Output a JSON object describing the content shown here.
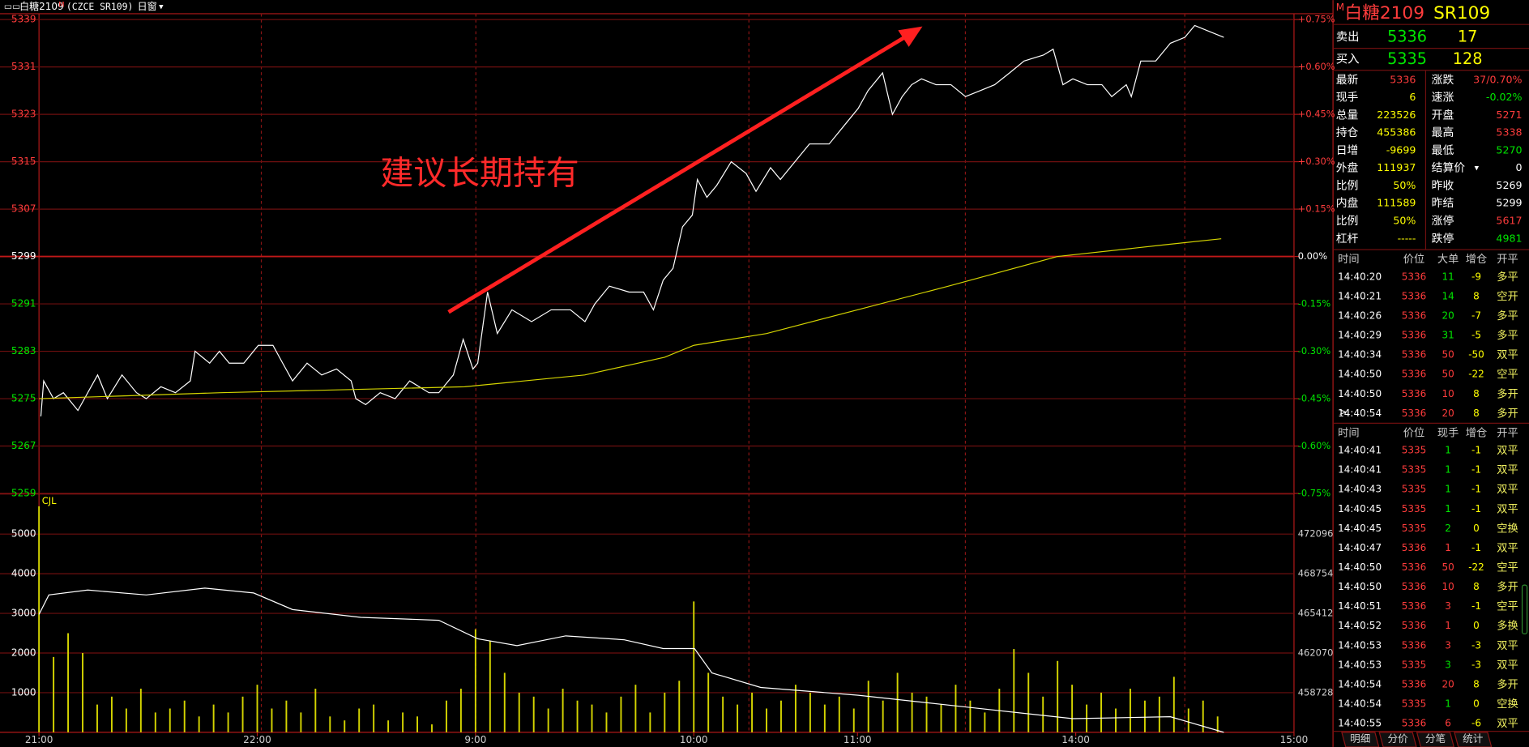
{
  "header": {
    "title": "白糖2109",
    "badge": "M",
    "code": "(CZCE SR109)",
    "window": "日窗"
  },
  "annotation": "建议长期持有",
  "chart_data": [
    {
      "type": "line",
      "xlim": [
        0,
        345
      ],
      "ylim": [
        5259,
        5339
      ],
      "yticks": [
        5339,
        5331,
        5323,
        5315,
        5307,
        5299,
        5291,
        5283,
        5275,
        5267,
        5259
      ],
      "y2lim": [
        -0.75,
        0.75
      ],
      "y2ticks": [
        {
          "value": 0.75,
          "label": "+0.75%"
        },
        {
          "value": 0.6,
          "label": "+0.60%"
        },
        {
          "value": 0.45,
          "label": "+0.45%"
        },
        {
          "value": 0.3,
          "label": "+0.30%"
        },
        {
          "value": 0.15,
          "label": "+0.15%"
        },
        {
          "value": 0,
          "label": "0.00%"
        },
        {
          "value": -0.15,
          "label": "-0.15%"
        },
        {
          "value": -0.3,
          "label": "-0.30%"
        },
        {
          "value": -0.45,
          "label": "-0.45%"
        },
        {
          "value": -0.6,
          "label": "-0.60%"
        },
        {
          "value": -0.75,
          "label": "-0.75%"
        }
      ],
      "grid": true,
      "series": [
        {
          "color": "#ffffff",
          "x": [
            0.5,
            1.3,
            4.0,
            6.7,
            10.7,
            16.1,
            18.8,
            22.8,
            26.8,
            29.5,
            33.5,
            37.5,
            41.6,
            42.9,
            46.9,
            49.6,
            52.3,
            56.3,
            60.3,
            64.3,
            67.0,
            69.7,
            73.7,
            77.7,
            81.8,
            85.8,
            87.1,
            89.8,
            93.8,
            97.9,
            101.9,
            107.2,
            109.9,
            113.9,
            116.6,
            119.3,
            120.6,
            123.3,
            126.0,
            130.0,
            135.4,
            140.8,
            146.1,
            150.1,
            152.8,
            156.8,
            162.2,
            166.2,
            168.9,
            171.6,
            174.3,
            176.9,
            179.6,
            181.0,
            183.6,
            186.3,
            190.3,
            194.4,
            197.1,
            201.1,
            203.8,
            207.8,
            211.8,
            217.2,
            221.2,
            225.2,
            227.9,
            231.9,
            234.6,
            237.3,
            239.9,
            242.6,
            246.6,
            250.7,
            254.7,
            258.7,
            262.7,
            266.8,
            270.8,
            276.1,
            278.8,
            281.5,
            284.2,
            288.2,
            292.2,
            294.9,
            298.9,
            300.3,
            302.9,
            307.0,
            311.0,
            315.0,
            317.7,
            321.7,
            325.7
          ],
          "values": [
            5272,
            5278,
            5275,
            5276,
            5273,
            5279,
            5275,
            5279,
            5276,
            5275,
            5277,
            5276,
            5278,
            5283,
            5281,
            5283,
            5281,
            5281,
            5284,
            5284,
            5281,
            5278,
            5281,
            5279,
            5280,
            5278,
            5275,
            5274,
            5276,
            5275,
            5278,
            5276,
            5276,
            5279,
            5285,
            5280,
            5281,
            5293,
            5286,
            5290,
            5288,
            5290,
            5290,
            5288,
            5291,
            5294,
            5293,
            5293,
            5290,
            5295,
            5297,
            5304,
            5306,
            5312,
            5309,
            5311,
            5315,
            5313,
            5310,
            5314,
            5312,
            5315,
            5318,
            5318,
            5321,
            5324,
            5327,
            5330,
            5323,
            5326,
            5328,
            5329,
            5328,
            5328,
            5326,
            5327,
            5328,
            5330,
            5332,
            5333,
            5334,
            5328,
            5329,
            5328,
            5328,
            5326,
            5328,
            5326,
            5332,
            5332,
            5335,
            5336,
            5338,
            5337,
            5336
          ]
        },
        {
          "color": "#d4d400",
          "x": [
            0,
            50,
            117,
            150,
            172,
            180,
            200,
            225,
            250,
            280,
            310,
            325
          ],
          "values": [
            5275,
            5276,
            5277,
            5279,
            5282,
            5284,
            5286,
            5290,
            5294,
            5299,
            5301,
            5302
          ]
        }
      ]
    },
    {
      "type": "bar",
      "label": "CJL",
      "xlim": [
        0,
        345
      ],
      "xticks": [
        {
          "value": 0,
          "label": "21:00"
        },
        {
          "value": 60,
          "label": "22:00"
        },
        {
          "value": 120,
          "label": "9:00"
        },
        {
          "value": 180,
          "label": "10:00"
        },
        {
          "value": 225,
          "label": "11:00"
        },
        {
          "value": 285,
          "label": "14:00"
        },
        {
          "value": 345,
          "label": "15:00"
        }
      ],
      "ylim": [
        0,
        6000
      ],
      "yticks": [
        5000,
        4000,
        3000,
        2000,
        1000
      ],
      "y2lim": [
        455386,
        475438
      ],
      "y2ticks": [
        472096,
        468754,
        465412,
        462070,
        458728
      ],
      "grid": true,
      "series": [
        {
          "color": "#d4d400",
          "x": [
            0,
            4,
            8,
            12,
            16,
            20,
            24,
            28,
            32,
            36,
            40,
            44,
            48,
            52,
            56,
            60,
            64,
            68,
            72,
            76,
            80,
            84,
            88,
            92,
            96,
            100,
            104,
            108,
            112,
            116,
            120,
            124,
            128,
            132,
            136,
            140,
            144,
            148,
            152,
            156,
            160,
            164,
            168,
            172,
            176,
            180,
            184,
            188,
            192,
            196,
            200,
            204,
            208,
            212,
            216,
            220,
            224,
            228,
            232,
            236,
            240,
            244,
            248,
            252,
            256,
            260,
            264,
            268,
            272,
            276,
            280,
            284,
            288,
            292,
            296,
            300,
            304,
            308,
            312,
            316,
            320,
            324
          ],
          "values": [
            5700,
            1900,
            2500,
            2000,
            700,
            900,
            600,
            1100,
            500,
            600,
            800,
            400,
            700,
            500,
            900,
            1200,
            600,
            800,
            500,
            1100,
            400,
            300,
            600,
            700,
            300,
            500,
            400,
            200,
            800,
            1100,
            2600,
            2300,
            1500,
            1000,
            900,
            600,
            1100,
            800,
            700,
            500,
            900,
            1200,
            500,
            1000,
            1300,
            3300,
            1500,
            900,
            700,
            1000,
            600,
            800,
            1200,
            1000,
            700,
            900,
            600,
            1300,
            800,
            1500,
            1000,
            900,
            700,
            1200,
            800,
            500,
            1100,
            2100,
            1500,
            900,
            1800,
            1200,
            700,
            1000,
            600,
            1100,
            800,
            900,
            1400,
            600,
            800,
            400
          ]
        },
        {
          "color": "#ffffff",
          "axis": "y2",
          "x": [
            0,
            2.7,
            13.4,
            29.5,
            45.6,
            59.0,
            69.7,
            88.5,
            109.9,
            120.6,
            131.4,
            144.8,
            160.9,
            171.6,
            180.2,
            185,
            198.4,
            225.2,
            254.7,
            284.2,
            311.0,
            325.7
          ],
          "values": [
            465320,
            466962,
            467373,
            466962,
            467537,
            467126,
            465731,
            465074,
            464828,
            463268,
            462693,
            463514,
            463186,
            462447,
            462447,
            460394,
            459163,
            458506,
            457521,
            456535,
            456700,
            455386
          ]
        }
      ]
    }
  ],
  "book": [
    {
      "label": "卖出",
      "price": 5336,
      "qty": 17
    },
    {
      "label": "买入",
      "price": 5335,
      "qty": 128
    }
  ],
  "quote": [
    {
      "label": "最新",
      "value": 5336,
      "color": "#ff3c3c"
    },
    {
      "label": "涨跌",
      "value": "37/0.70%",
      "color": "#ff3c3c"
    },
    {
      "label": "现手",
      "value": 6,
      "color": "#ffff00"
    },
    {
      "label": "速涨",
      "value": "-0.02%",
      "color": "#00e600"
    },
    {
      "label": "总量",
      "value": 223526,
      "color": "#ffff00"
    },
    {
      "label": "开盘",
      "value": 5271,
      "color": "#ff3c3c"
    },
    {
      "label": "持仓",
      "value": 455386,
      "color": "#ffff00"
    },
    {
      "label": "最高",
      "value": 5338,
      "color": "#ff3c3c"
    },
    {
      "label": "日增",
      "value": -9699,
      "color": "#ffff00"
    },
    {
      "label": "最低",
      "value": 5270,
      "color": "#00e600"
    },
    {
      "label": "外盘",
      "value": 111937,
      "color": "#ffff00"
    },
    {
      "label": "结算价",
      "value": 0,
      "color": "#ffffff"
    },
    {
      "label": "比例",
      "value": "50%",
      "color": "#ffff00"
    },
    {
      "label": "昨收",
      "value": 5269,
      "color": "#ffffff"
    },
    {
      "label": "内盘",
      "value": 111589,
      "color": "#ffff00"
    },
    {
      "label": "昨结",
      "value": 5299,
      "color": "#ffffff"
    },
    {
      "label": "比例",
      "value": "50%",
      "color": "#ffff00"
    },
    {
      "label": "涨停",
      "value": 5617,
      "color": "#ff3c3c"
    },
    {
      "label": "杠杆",
      "value": "-----",
      "color": "#ffff00"
    },
    {
      "label": "跌停",
      "value": 4981,
      "color": "#00e600"
    }
  ],
  "ticks_big": {
    "columns": [
      "时间",
      "价位",
      "大单",
      "增仓",
      "开平"
    ],
    "rows": [
      {
        "time": "14:40:20",
        "price": 5336,
        "qty": 11,
        "oi": -9,
        "type": "多平",
        "color": "#00e600"
      },
      {
        "time": "14:40:21",
        "price": 5336,
        "qty": 14,
        "oi": 8,
        "type": "空开",
        "color": "#00e600"
      },
      {
        "time": "14:40:26",
        "price": 5336,
        "qty": 20,
        "oi": -7,
        "type": "多平",
        "color": "#00e600"
      },
      {
        "time": "14:40:29",
        "price": 5336,
        "qty": 31,
        "oi": -5,
        "type": "多平",
        "color": "#00e600"
      },
      {
        "time": "14:40:34",
        "price": 5336,
        "qty": 50,
        "oi": -50,
        "type": "双平",
        "color": "#ff3c3c"
      },
      {
        "time": "14:40:50",
        "price": 5336,
        "qty": 50,
        "oi": -22,
        "type": "空平",
        "color": "#ff3c3c"
      },
      {
        "time": "14:40:50",
        "price": 5336,
        "qty": 10,
        "oi": 8,
        "type": "多开",
        "color": "#ff3c3c"
      },
      {
        "time": "14:40:54",
        "price": 5336,
        "qty": 20,
        "oi": 8,
        "type": "多开",
        "color": "#ff3c3c"
      }
    ]
  },
  "ticks_all": {
    "columns": [
      "时间",
      "价位",
      "现手",
      "增仓",
      "开平"
    ],
    "rows": [
      {
        "time": "14:40:41",
        "price": 5335,
        "qty": 1,
        "oi": -1,
        "type": "双平",
        "color": "#00e600"
      },
      {
        "time": "14:40:41",
        "price": 5335,
        "qty": 1,
        "oi": -1,
        "type": "双平",
        "color": "#00e600"
      },
      {
        "time": "14:40:43",
        "price": 5335,
        "qty": 1,
        "oi": -1,
        "type": "双平",
        "color": "#00e600"
      },
      {
        "time": "14:40:45",
        "price": 5335,
        "qty": 1,
        "oi": -1,
        "type": "双平",
        "color": "#00e600"
      },
      {
        "time": "14:40:45",
        "price": 5335,
        "qty": 2,
        "oi": 0,
        "type": "空换",
        "color": "#00e600"
      },
      {
        "time": "14:40:47",
        "price": 5336,
        "qty": 1,
        "oi": -1,
        "type": "双平",
        "color": "#ff3c3c"
      },
      {
        "time": "14:40:50",
        "price": 5336,
        "qty": 50,
        "oi": -22,
        "type": "空平",
        "color": "#ff3c3c"
      },
      {
        "time": "14:40:50",
        "price": 5336,
        "qty": 10,
        "oi": 8,
        "type": "多开",
        "color": "#ff3c3c"
      },
      {
        "time": "14:40:51",
        "price": 5336,
        "qty": 3,
        "oi": -1,
        "type": "空平",
        "color": "#ff3c3c"
      },
      {
        "time": "14:40:52",
        "price": 5336,
        "qty": 1,
        "oi": 0,
        "type": "多换",
        "color": "#ff3c3c"
      },
      {
        "time": "14:40:53",
        "price": 5336,
        "qty": 3,
        "oi": -3,
        "type": "双平",
        "color": "#ff3c3c"
      },
      {
        "time": "14:40:53",
        "price": 5335,
        "qty": 3,
        "oi": -3,
        "type": "双平",
        "color": "#00e600"
      },
      {
        "time": "14:40:54",
        "price": 5336,
        "qty": 20,
        "oi": 8,
        "type": "多开",
        "color": "#ff3c3c"
      },
      {
        "time": "14:40:54",
        "price": 5335,
        "qty": 1,
        "oi": 0,
        "type": "空换",
        "color": "#00e600"
      },
      {
        "time": "14:40:55",
        "price": 5336,
        "qty": 6,
        "oi": -6,
        "type": "双平",
        "color": "#ff3c3c"
      }
    ]
  },
  "tabs": [
    "明细",
    "分价",
    "分笔",
    "统计"
  ]
}
